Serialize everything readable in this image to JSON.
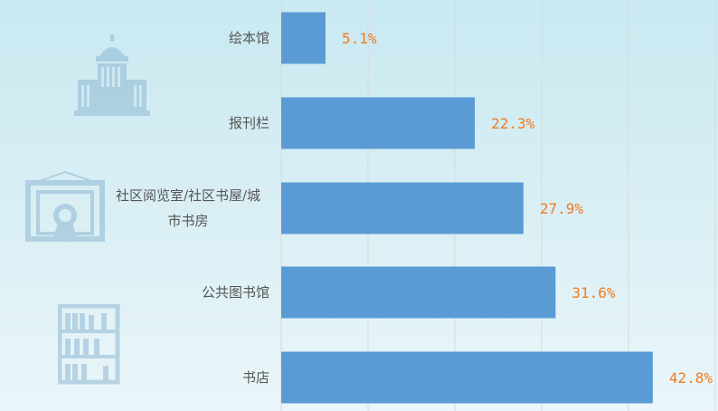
{
  "chart_data": {
    "type": "bar",
    "orientation": "horizontal",
    "categories": [
      "绘本馆",
      "报刊栏",
      "社区阅览室/社区书屋/城市书房",
      "公共图书馆",
      "书店"
    ],
    "category_lines": [
      [
        "绘本馆"
      ],
      [
        "报刊栏"
      ],
      [
        "社区阅览室/社区书屋/城",
        "市书房"
      ],
      [
        "公共图书馆"
      ],
      [
        "书店"
      ]
    ],
    "values": [
      5.1,
      22.3,
      27.9,
      31.6,
      42.8
    ],
    "data_labels": [
      "5.1%",
      "22.3%",
      "27.9%",
      "31.6%",
      "42.8%"
    ],
    "xlim": [
      0,
      50
    ],
    "grid": true,
    "title": "",
    "xlabel": "",
    "ylabel": "",
    "colors": {
      "bar": "#5b9bd5",
      "label": "#f07b22",
      "grid": "#d9d9d9"
    }
  },
  "decorations": [
    "library-building-icon",
    "certificate-icon",
    "bookshelf-icon"
  ]
}
